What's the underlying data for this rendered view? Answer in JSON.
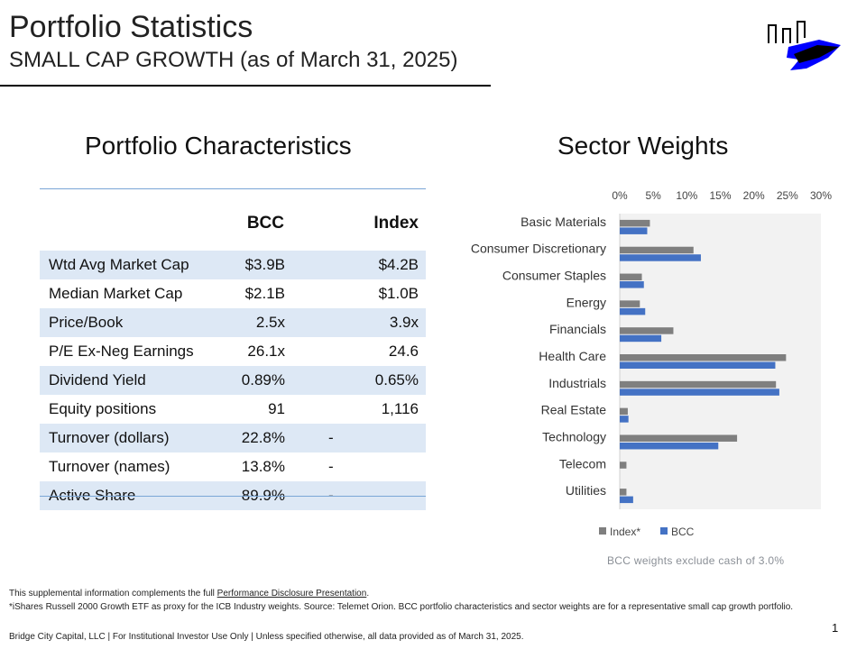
{
  "header": {
    "title": "Portfolio Statistics",
    "subtitle": "SMALL CAP GROWTH (as of March 31, 2025)"
  },
  "characteristics": {
    "title": "Portfolio Characteristics",
    "col_bcc": "BCC",
    "col_index": "Index",
    "rows": [
      {
        "label": "Wtd Avg Market Cap",
        "bcc": "$3.9B",
        "index": "$4.2B"
      },
      {
        "label": "Median Market Cap",
        "bcc": "$2.1B",
        "index": "$1.0B"
      },
      {
        "label": "Price/Book",
        "bcc": "2.5x",
        "index": "3.9x"
      },
      {
        "label": "P/E Ex-Neg Earnings",
        "bcc": "26.1x",
        "index": "24.6"
      },
      {
        "label": "Dividend Yield",
        "bcc": "0.89%",
        "index": "0.65%"
      },
      {
        "label": "Equity positions",
        "bcc": "91",
        "index": "1,116"
      },
      {
        "label": "Turnover (dollars)",
        "bcc": "22.8%",
        "index": "-"
      },
      {
        "label": "Turnover (names)",
        "bcc": "13.8%",
        "index": "-"
      },
      {
        "label": "Active Share",
        "bcc": "89.9%",
        "index": "-"
      }
    ]
  },
  "sector": {
    "title": "Sector Weights",
    "note": "BCC weights exclude cash of 3.0%"
  },
  "chart_data": {
    "type": "bar",
    "orientation": "horizontal",
    "categories": [
      "Basic Materials",
      "Consumer Discretionary",
      "Consumer Staples",
      "Energy",
      "Financials",
      "Health Care",
      "Industrials",
      "Real Estate",
      "Technology",
      "Telecom",
      "Utilities"
    ],
    "series": [
      {
        "name": "Index*",
        "color": "#7f7f7f",
        "values": [
          4.5,
          11.0,
          3.3,
          3.0,
          8.0,
          24.8,
          23.3,
          1.2,
          17.5,
          1.0,
          1.0
        ]
      },
      {
        "name": "BCC",
        "color": "#4472c4",
        "values": [
          4.1,
          12.1,
          3.6,
          3.8,
          6.2,
          23.2,
          23.8,
          1.3,
          14.7,
          0.0,
          2.0
        ]
      }
    ],
    "x_ticks": [
      "0%",
      "5%",
      "10%",
      "15%",
      "20%",
      "25%",
      "30%"
    ],
    "xlim": [
      0,
      30
    ],
    "legend_position": "bottom-left",
    "grid": false
  },
  "footer": {
    "line1_prefix": "This supplemental information complements the full ",
    "line1_link": "Performance Disclosure Presentation",
    "line1_suffix": ".",
    "line2": "*iShares Russell 2000 Growth ETF as proxy for the ICB Industry weights.  Source:  Telemet Orion.  BCC portfolio characteristics and sector weights are for a representative small cap growth portfolio.",
    "line3": "Bridge City Capital, LLC | For Institutional Investor Use Only | Unless specified otherwise, all data provided as of March 31, 2025.",
    "page_number": "1"
  }
}
